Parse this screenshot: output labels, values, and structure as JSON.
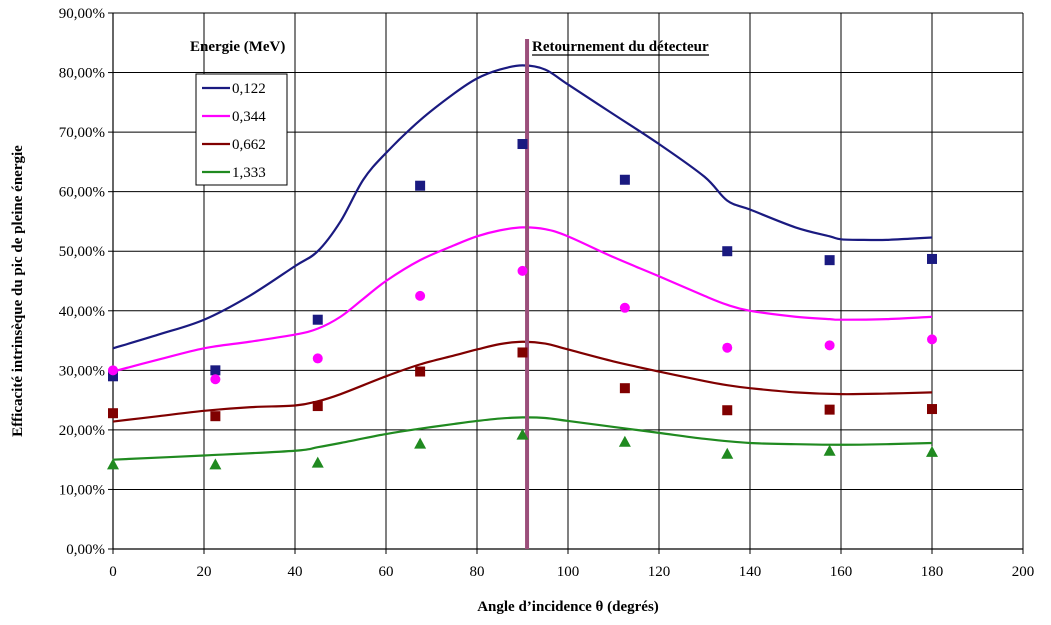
{
  "chart_data": {
    "type": "scatter",
    "xlabel": "Angle d’incidence θ (degrés)",
    "ylabel": "Efficacité intrinsèque du pic de pleine énergie",
    "xlim": [
      0,
      200
    ],
    "ylim": [
      0,
      0.9
    ],
    "x_ticks": [
      "0",
      "20",
      "40",
      "60",
      "80",
      "100",
      "120",
      "140",
      "160",
      "180",
      "200"
    ],
    "y_ticks": [
      "0,00%",
      "10,00%",
      "20,00%",
      "30,00%",
      "40,00%",
      "50,00%",
      "60,00%",
      "70,00%",
      "80,00%",
      "90,00%"
    ],
    "grid": true,
    "legend_title": "Energie (MeV)",
    "legend_position": "top-left",
    "annotation": "Retournement du détecteur",
    "vertical_line_x": 91,
    "vertical_line_color": "#9b4f7b",
    "series": [
      {
        "name": "0,122",
        "color": "#1a1a80",
        "marker": "square",
        "points_x": [
          0,
          22.5,
          45,
          67.5,
          90,
          112.5,
          135,
          157.5,
          180
        ],
        "points_y": [
          0.29,
          0.3,
          0.385,
          0.61,
          0.68,
          0.62,
          0.5,
          0.485,
          0.487
        ],
        "curve_x": [
          0,
          10,
          20,
          30,
          40,
          45,
          50,
          55,
          60,
          67.5,
          75,
          80,
          85,
          90,
          95,
          100,
          110,
          120,
          130,
          135,
          140,
          150,
          157.5,
          160,
          165,
          170,
          175,
          180
        ],
        "curve_y": [
          0.337,
          0.36,
          0.385,
          0.425,
          0.475,
          0.5,
          0.55,
          0.62,
          0.665,
          0.72,
          0.765,
          0.79,
          0.805,
          0.812,
          0.805,
          0.78,
          0.73,
          0.68,
          0.625,
          0.585,
          0.57,
          0.54,
          0.525,
          0.52,
          0.519,
          0.519,
          0.521,
          0.523
        ]
      },
      {
        "name": "0,344",
        "color": "#ff00ff",
        "marker": "circle",
        "points_x": [
          0,
          22.5,
          45,
          67.5,
          90,
          112.5,
          135,
          157.5,
          180
        ],
        "points_y": [
          0.3,
          0.285,
          0.32,
          0.425,
          0.467,
          0.405,
          0.338,
          0.342,
          0.352
        ],
        "curve_x": [
          0,
          10,
          20,
          30,
          40,
          45,
          50,
          55,
          60,
          67.5,
          75,
          80,
          85,
          90,
          95,
          100,
          110,
          120,
          130,
          135,
          140,
          150,
          157.5,
          160,
          170,
          180
        ],
        "curve_y": [
          0.298,
          0.318,
          0.337,
          0.348,
          0.36,
          0.37,
          0.39,
          0.42,
          0.45,
          0.485,
          0.51,
          0.525,
          0.535,
          0.54,
          0.537,
          0.525,
          0.49,
          0.458,
          0.425,
          0.41,
          0.4,
          0.39,
          0.386,
          0.385,
          0.386,
          0.39
        ]
      },
      {
        "name": "0,662",
        "color": "#800000",
        "marker": "square",
        "points_x": [
          0,
          22.5,
          45,
          67.5,
          90,
          112.5,
          135,
          157.5,
          180
        ],
        "points_y": [
          0.228,
          0.223,
          0.24,
          0.298,
          0.33,
          0.27,
          0.233,
          0.234,
          0.235
        ],
        "curve_x": [
          0,
          10,
          20,
          30,
          40,
          45,
          50,
          60,
          67.5,
          75,
          80,
          85,
          90,
          95,
          100,
          110,
          120,
          130,
          135,
          140,
          150,
          160,
          170,
          180
        ],
        "curve_y": [
          0.214,
          0.223,
          0.232,
          0.238,
          0.241,
          0.248,
          0.26,
          0.29,
          0.31,
          0.325,
          0.335,
          0.344,
          0.348,
          0.345,
          0.335,
          0.315,
          0.298,
          0.282,
          0.275,
          0.27,
          0.263,
          0.26,
          0.261,
          0.263
        ]
      },
      {
        "name": "1,333",
        "color": "#208a20",
        "marker": "triangle",
        "points_x": [
          0,
          22.5,
          45,
          67.5,
          90,
          112.5,
          135,
          157.5,
          180
        ],
        "points_y": [
          0.142,
          0.142,
          0.145,
          0.177,
          0.192,
          0.18,
          0.16,
          0.165,
          0.163
        ],
        "curve_x": [
          0,
          20,
          40,
          45,
          50,
          60,
          67.5,
          75,
          80,
          85,
          90,
          95,
          100,
          110,
          120,
          130,
          140,
          150,
          160,
          170,
          180
        ],
        "curve_y": [
          0.15,
          0.157,
          0.165,
          0.171,
          0.178,
          0.193,
          0.202,
          0.21,
          0.215,
          0.219,
          0.221,
          0.22,
          0.215,
          0.205,
          0.195,
          0.185,
          0.178,
          0.176,
          0.175,
          0.176,
          0.178
        ]
      }
    ]
  }
}
